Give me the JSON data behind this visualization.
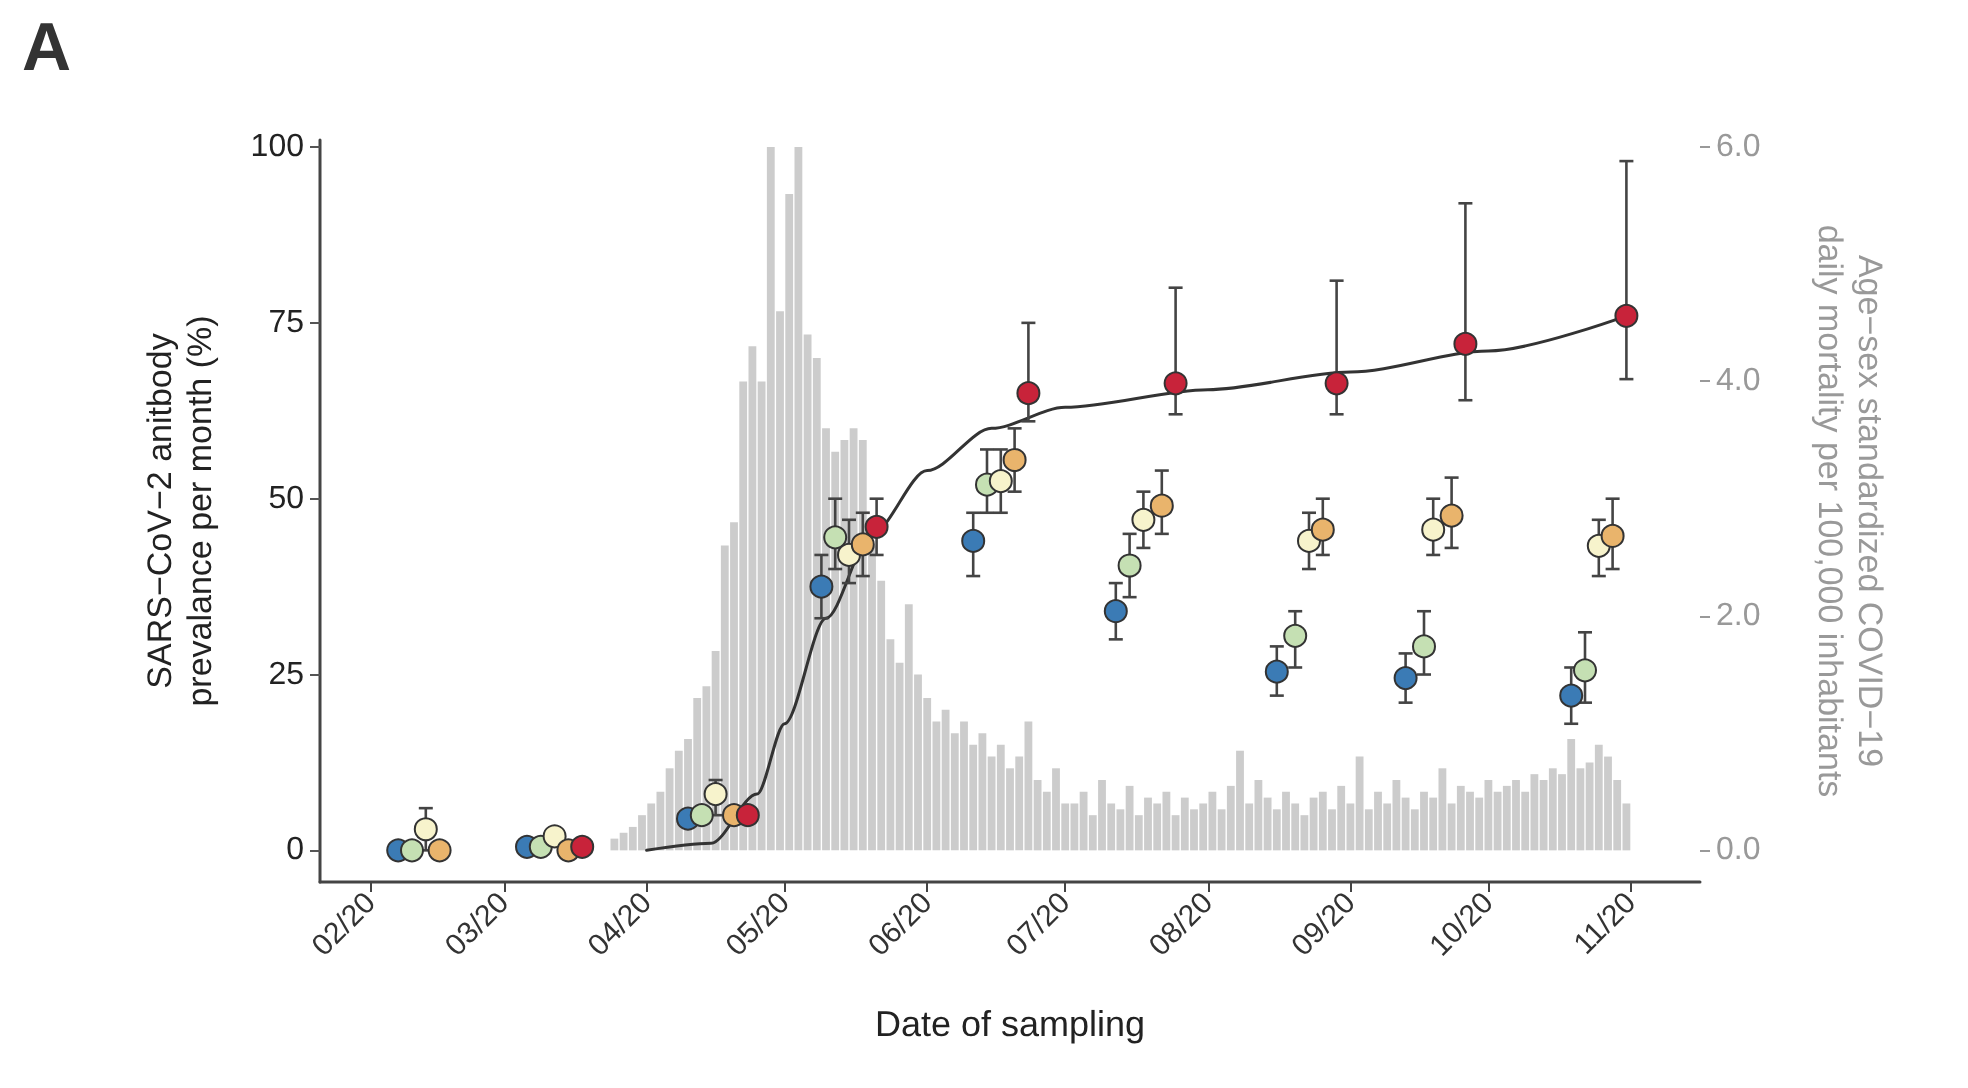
{
  "chart_data": {
    "type": "scatter",
    "title": "A",
    "xlabel": "Date of sampling",
    "ylabel": "SARS−CoV−2 anitbody\nprevalance per month (%)",
    "y2label": "Age−sex standardized COVID−19\ndaily mortality per 100,000 inhabitants",
    "xlim": [
      "2020-01-21",
      "2020-11-16"
    ],
    "xticks": [
      {
        "value": "2020-02-01",
        "label": "02/20"
      },
      {
        "value": "2020-03-01",
        "label": "03/20"
      },
      {
        "value": "2020-04-01",
        "label": "04/20"
      },
      {
        "value": "2020-05-01",
        "label": "05/20"
      },
      {
        "value": "2020-06-01",
        "label": "06/20"
      },
      {
        "value": "2020-07-01",
        "label": "07/20"
      },
      {
        "value": "2020-08-01",
        "label": "08/20"
      },
      {
        "value": "2020-09-01",
        "label": "09/20"
      },
      {
        "value": "2020-10-01",
        "label": "10/20"
      },
      {
        "value": "2020-11-01",
        "label": "11/20"
      }
    ],
    "ylim": [
      -4.5,
      101
    ],
    "yticks": [
      0,
      25,
      50,
      75,
      100
    ],
    "y2lim": [
      -0.27,
      6.06
    ],
    "y2ticks": [
      {
        "value": 0,
        "label": "0.0"
      },
      {
        "value": 2,
        "label": "2.0"
      },
      {
        "value": 4,
        "label": "4.0"
      },
      {
        "value": 6,
        "label": "6.0"
      }
    ],
    "grid": false,
    "marker": "circle",
    "series": [
      {
        "type": "bar",
        "axis": "y2",
        "color": "#cccccc",
        "x": [
          "2020-03-25",
          "2020-03-27",
          "2020-03-29",
          "2020-03-31",
          "2020-04-02",
          "2020-04-04",
          "2020-04-06",
          "2020-04-08",
          "2020-04-10",
          "2020-04-12",
          "2020-04-14",
          "2020-04-16",
          "2020-04-18",
          "2020-04-20",
          "2020-04-22",
          "2020-04-24",
          "2020-04-26",
          "2020-04-28",
          "2020-04-30",
          "2020-05-02",
          "2020-05-04",
          "2020-05-06",
          "2020-05-08",
          "2020-05-10",
          "2020-05-12",
          "2020-05-14",
          "2020-05-16",
          "2020-05-18",
          "2020-05-20",
          "2020-05-22",
          "2020-05-24",
          "2020-05-26",
          "2020-05-28",
          "2020-05-30",
          "2020-06-01",
          "2020-06-03",
          "2020-06-05",
          "2020-06-07",
          "2020-06-09",
          "2020-06-11",
          "2020-06-13",
          "2020-06-15",
          "2020-06-17",
          "2020-06-19",
          "2020-06-21",
          "2020-06-23",
          "2020-06-25",
          "2020-06-27",
          "2020-06-29",
          "2020-07-01",
          "2020-07-03",
          "2020-07-05",
          "2020-07-07",
          "2020-07-09",
          "2020-07-11",
          "2020-07-13",
          "2020-07-15",
          "2020-07-17",
          "2020-07-19",
          "2020-07-21",
          "2020-07-23",
          "2020-07-25",
          "2020-07-27",
          "2020-07-29",
          "2020-07-31",
          "2020-08-02",
          "2020-08-04",
          "2020-08-06",
          "2020-08-08",
          "2020-08-10",
          "2020-08-12",
          "2020-08-14",
          "2020-08-16",
          "2020-08-18",
          "2020-08-20",
          "2020-08-22",
          "2020-08-24",
          "2020-08-26",
          "2020-08-28",
          "2020-08-30",
          "2020-09-01",
          "2020-09-03",
          "2020-09-05",
          "2020-09-07",
          "2020-09-09",
          "2020-09-11",
          "2020-09-13",
          "2020-09-15",
          "2020-09-17",
          "2020-09-19",
          "2020-09-21",
          "2020-09-23",
          "2020-09-25",
          "2020-09-27",
          "2020-09-29",
          "2020-10-01",
          "2020-10-03",
          "2020-10-05",
          "2020-10-07",
          "2020-10-09",
          "2020-10-11",
          "2020-10-13",
          "2020-10-15",
          "2020-10-17",
          "2020-10-19",
          "2020-10-21",
          "2020-10-23",
          "2020-10-25",
          "2020-10-27",
          "2020-10-29",
          "2020-10-31"
        ],
        "values": [
          0.1,
          0.15,
          0.2,
          0.3,
          0.4,
          0.5,
          0.7,
          0.85,
          0.95,
          1.3,
          1.4,
          1.7,
          2.6,
          2.8,
          4.0,
          4.3,
          4.0,
          6.0,
          4.6,
          5.6,
          6.0,
          4.4,
          4.2,
          3.6,
          3.4,
          3.5,
          3.6,
          3.5,
          2.6,
          2.3,
          1.8,
          1.6,
          2.1,
          1.5,
          1.3,
          1.1,
          1.2,
          1.0,
          1.1,
          0.9,
          1.0,
          0.8,
          0.9,
          0.7,
          0.8,
          1.1,
          0.6,
          0.5,
          0.7,
          0.4,
          0.4,
          0.5,
          0.3,
          0.6,
          0.4,
          0.35,
          0.55,
          0.3,
          0.45,
          0.4,
          0.5,
          0.3,
          0.45,
          0.35,
          0.4,
          0.5,
          0.35,
          0.55,
          0.85,
          0.4,
          0.6,
          0.45,
          0.35,
          0.5,
          0.4,
          0.3,
          0.45,
          0.5,
          0.35,
          0.55,
          0.4,
          0.8,
          0.35,
          0.5,
          0.4,
          0.6,
          0.45,
          0.35,
          0.5,
          0.45,
          0.7,
          0.4,
          0.55,
          0.5,
          0.45,
          0.6,
          0.5,
          0.55,
          0.6,
          0.5,
          0.65,
          0.6,
          0.7,
          0.65,
          0.95,
          0.7,
          0.75,
          0.9,
          0.8,
          0.6,
          0.4
        ]
      },
      {
        "type": "line",
        "color": "#333333",
        "marker": "none",
        "line_style": "solid",
        "x": [
          "2020-04-01",
          "2020-04-15",
          "2020-04-25",
          "2020-05-01",
          "2020-05-10",
          "2020-05-20",
          "2020-06-01",
          "2020-06-15",
          "2020-07-01",
          "2020-08-01",
          "2020-09-01",
          "2020-10-01",
          "2020-10-31"
        ],
        "values": [
          0,
          1,
          8,
          18,
          33,
          45,
          54,
          60,
          63,
          65.5,
          68,
          71,
          76
        ]
      },
      {
        "color": "#3b7bb5",
        "x": [
          "2020-02-07",
          "2020-03-06",
          "2020-04-10",
          "2020-05-09",
          "2020-06-11",
          "2020-07-12",
          "2020-08-16",
          "2020-09-13",
          "2020-10-19"
        ],
        "values": [
          0,
          0.5,
          4.5,
          37.5,
          44,
          34,
          25.4,
          24.5,
          22
        ],
        "errors": [
          null,
          null,
          null,
          [
            33,
            42
          ],
          [
            39,
            48
          ],
          [
            30,
            38
          ],
          [
            22,
            29
          ],
          [
            21,
            28
          ],
          [
            18,
            26
          ]
        ]
      },
      {
        "color": "#c5e0b3",
        "x": [
          "2020-02-10",
          "2020-03-09",
          "2020-04-13",
          "2020-05-12",
          "2020-06-14",
          "2020-07-15",
          "2020-08-20",
          "2020-09-17",
          "2020-10-22"
        ],
        "values": [
          0,
          0.5,
          5,
          44.5,
          52,
          40.5,
          30.5,
          29,
          25.6
        ],
        "errors": [
          null,
          null,
          null,
          [
            40,
            50
          ],
          [
            48,
            57
          ],
          [
            36,
            45
          ],
          [
            26,
            34
          ],
          [
            25,
            34
          ],
          [
            21,
            31
          ]
        ]
      },
      {
        "color": "#f7f3cc",
        "x": [
          "2020-02-13",
          "2020-03-12",
          "2020-04-16",
          "2020-05-15",
          "2020-06-17",
          "2020-07-18",
          "2020-08-23",
          "2020-09-19",
          "2020-10-25"
        ],
        "values": [
          3,
          2,
          8,
          42,
          52.5,
          47,
          44,
          45.6,
          43.3
        ],
        "errors": [
          [
            0,
            6
          ],
          null,
          [
            5,
            10
          ],
          [
            38,
            47
          ],
          [
            48,
            57
          ],
          [
            43,
            51
          ],
          [
            40,
            48
          ],
          [
            42,
            50
          ],
          [
            39,
            47
          ]
        ]
      },
      {
        "color": "#e9b46c",
        "x": [
          "2020-02-16",
          "2020-03-15",
          "2020-04-20",
          "2020-05-18",
          "2020-06-20",
          "2020-07-22",
          "2020-08-26",
          "2020-09-23",
          "2020-10-28"
        ],
        "values": [
          0,
          0,
          5,
          43.5,
          55.5,
          49,
          45.6,
          47.6,
          44.7
        ],
        "errors": [
          null,
          null,
          null,
          [
            39,
            48
          ],
          [
            51,
            60
          ],
          [
            45,
            54
          ],
          [
            42,
            50
          ],
          [
            43,
            53
          ],
          [
            40,
            50
          ]
        ]
      },
      {
        "color": "#c8233a",
        "x": [
          "2020-03-18",
          "2020-04-23",
          "2020-05-21",
          "2020-06-23",
          "2020-07-25",
          "2020-08-29",
          "2020-09-26",
          "2020-10-31"
        ],
        "values": [
          0.5,
          5,
          46,
          65,
          66.4,
          66.4,
          72,
          76
        ],
        "errors": [
          null,
          null,
          [
            42,
            50
          ],
          [
            61,
            75
          ],
          [
            62,
            80
          ],
          [
            62,
            81
          ],
          [
            64,
            92
          ],
          [
            67,
            98
          ]
        ]
      }
    ]
  }
}
